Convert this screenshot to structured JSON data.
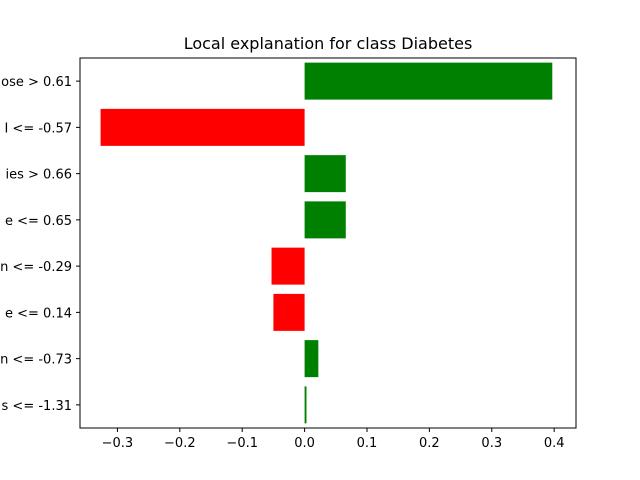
{
  "chart_data": {
    "type": "bar",
    "orientation": "horizontal",
    "title": "Local explanation for class Diabetes",
    "xlabel": "",
    "ylabel": "",
    "xlim": [
      -0.36,
      0.435
    ],
    "grid": false,
    "x_ticks": [
      -0.3,
      -0.2,
      -0.1,
      0.0,
      0.1,
      0.2,
      0.3,
      0.4
    ],
    "x_tick_labels": [
      "−0.3",
      "−0.2",
      "−0.1",
      "0.0",
      "0.1",
      "0.2",
      "0.3",
      "0.4"
    ],
    "categories": [
      "ose > 0.61",
      "I <= -0.57",
      "ies > 0.66",
      "e <= 0.65",
      "n <= -0.29",
      "e <= 0.14",
      "n <= -0.73",
      "s <= -1.31"
    ],
    "values": [
      0.397,
      -0.327,
      0.066,
      0.066,
      -0.053,
      -0.05,
      0.022,
      0.003
    ],
    "colors": {
      "positive": "#008000",
      "negative": "#ff0000"
    }
  }
}
